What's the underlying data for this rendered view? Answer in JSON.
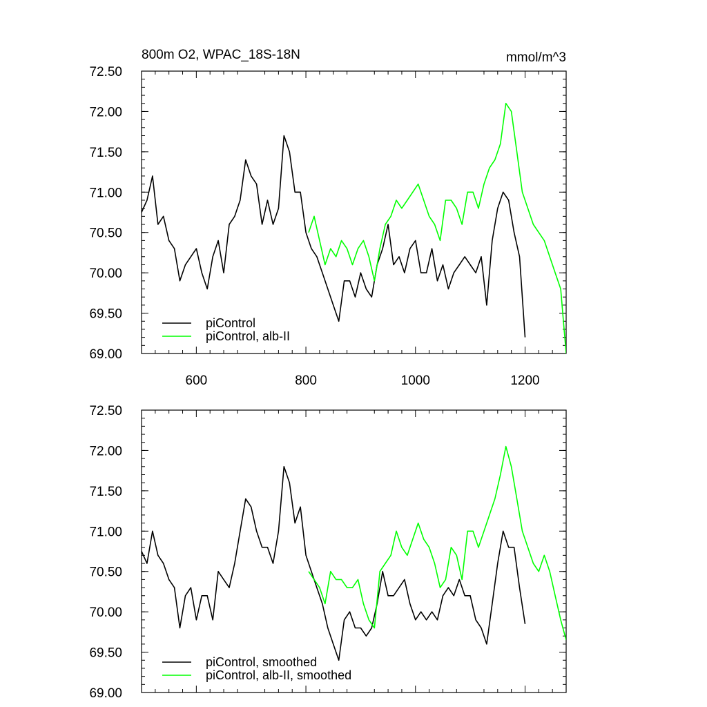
{
  "chart_data": [
    {
      "type": "line",
      "title_left": "800m O2, WPAC_18S-18N",
      "title_right": "mmol/m^3",
      "xlim": [
        500,
        1275
      ],
      "ylim": [
        69.0,
        72.5
      ],
      "xticks": [
        600,
        800,
        1000,
        1200
      ],
      "xtick_labels": [
        "600",
        "800",
        "1000",
        "1200"
      ],
      "yticks": [
        69.0,
        69.5,
        70.0,
        70.5,
        71.0,
        71.5,
        72.0,
        72.5
      ],
      "ytick_labels": [
        "69.00",
        "69.50",
        "70.00",
        "70.50",
        "71.00",
        "71.50",
        "72.00",
        "72.50"
      ],
      "show_xtick_labels": true,
      "legend_placement": "bottom-left",
      "series": [
        {
          "name": "piControl",
          "color": "#000000",
          "x": [
            500,
            510,
            520,
            530,
            540,
            550,
            560,
            570,
            580,
            590,
            600,
            610,
            620,
            630,
            640,
            650,
            660,
            670,
            680,
            690,
            700,
            710,
            720,
            730,
            740,
            750,
            760,
            770,
            780,
            790,
            800,
            810,
            820,
            830,
            840,
            850,
            860,
            870,
            880,
            890,
            900,
            910,
            920,
            930,
            940,
            950,
            960,
            970,
            980,
            990,
            1000,
            1010,
            1020,
            1030,
            1040,
            1050,
            1060,
            1070,
            1080,
            1090,
            1100,
            1110,
            1120,
            1130,
            1140,
            1150,
            1160,
            1170,
            1180,
            1190,
            1200
          ],
          "values": [
            70.75,
            70.9,
            71.2,
            70.6,
            70.7,
            70.4,
            70.3,
            69.9,
            70.1,
            70.2,
            70.3,
            70.0,
            69.8,
            70.2,
            70.4,
            70.0,
            70.6,
            70.7,
            70.9,
            71.4,
            71.2,
            71.1,
            70.6,
            70.9,
            70.6,
            70.8,
            71.7,
            71.5,
            71.0,
            71.0,
            70.5,
            70.3,
            70.2,
            70.0,
            69.8,
            69.6,
            69.4,
            69.9,
            69.9,
            69.7,
            70.0,
            69.8,
            69.7,
            70.1,
            70.3,
            70.6,
            70.1,
            70.2,
            70.0,
            70.3,
            70.4,
            70.0,
            70.0,
            70.3,
            69.9,
            70.1,
            69.8,
            70.0,
            70.1,
            70.2,
            70.1,
            70.0,
            70.2,
            69.6,
            70.4,
            70.8,
            71.0,
            70.9,
            70.5,
            70.2,
            69.2
          ]
        },
        {
          "name": "piControl, alb-II",
          "color": "#00ff00",
          "x": [
            805,
            815,
            825,
            835,
            845,
            855,
            865,
            875,
            885,
            895,
            905,
            915,
            925,
            935,
            945,
            955,
            965,
            975,
            985,
            995,
            1005,
            1015,
            1025,
            1035,
            1045,
            1055,
            1065,
            1075,
            1085,
            1095,
            1105,
            1115,
            1125,
            1135,
            1145,
            1155,
            1165,
            1175,
            1185,
            1195,
            1205,
            1215,
            1225,
            1235,
            1245,
            1255,
            1265,
            1275
          ],
          "values": [
            70.5,
            70.7,
            70.4,
            70.1,
            70.3,
            70.2,
            70.4,
            70.3,
            70.1,
            70.3,
            70.4,
            70.2,
            69.9,
            70.3,
            70.6,
            70.7,
            70.9,
            70.8,
            70.9,
            71.0,
            71.1,
            70.9,
            70.7,
            70.6,
            70.4,
            70.9,
            70.9,
            70.8,
            70.6,
            71.0,
            71.0,
            70.8,
            71.1,
            71.3,
            71.4,
            71.6,
            72.1,
            72.0,
            71.5,
            71.0,
            70.8,
            70.6,
            70.5,
            70.4,
            70.2,
            70.0,
            69.8,
            69.0
          ]
        }
      ]
    },
    {
      "type": "line",
      "xlim": [
        500,
        1275
      ],
      "ylim": [
        69.0,
        72.5
      ],
      "xticks": [
        600,
        800,
        1000,
        1200
      ],
      "yticks": [
        69.0,
        69.5,
        70.0,
        70.5,
        71.0,
        71.5,
        72.0,
        72.5
      ],
      "ytick_labels": [
        "69.00",
        "69.50",
        "70.00",
        "70.50",
        "71.00",
        "71.50",
        "72.00",
        "72.50"
      ],
      "show_xtick_labels": false,
      "legend_placement": "bottom-left",
      "series": [
        {
          "name": "piControl, smoothed",
          "color": "#000000",
          "x": [
            500,
            510,
            520,
            530,
            540,
            550,
            560,
            570,
            580,
            590,
            600,
            610,
            620,
            630,
            640,
            650,
            660,
            670,
            680,
            690,
            700,
            710,
            720,
            730,
            740,
            750,
            760,
            770,
            780,
            790,
            800,
            810,
            820,
            830,
            840,
            850,
            860,
            870,
            880,
            890,
            900,
            910,
            920,
            930,
            940,
            950,
            960,
            970,
            980,
            990,
            1000,
            1010,
            1020,
            1030,
            1040,
            1050,
            1060,
            1070,
            1080,
            1090,
            1100,
            1110,
            1120,
            1130,
            1140,
            1150,
            1160,
            1170,
            1180,
            1190,
            1200
          ],
          "values": [
            70.75,
            70.6,
            71.0,
            70.7,
            70.6,
            70.4,
            70.3,
            69.8,
            70.2,
            70.3,
            69.9,
            70.2,
            70.2,
            69.9,
            70.5,
            70.4,
            70.3,
            70.6,
            71.0,
            71.4,
            71.3,
            71.0,
            70.8,
            70.8,
            70.6,
            71.0,
            71.8,
            71.6,
            71.1,
            71.3,
            70.7,
            70.5,
            70.3,
            70.1,
            69.8,
            69.6,
            69.4,
            69.9,
            70.0,
            69.8,
            69.8,
            69.7,
            69.8,
            70.1,
            70.5,
            70.2,
            70.2,
            70.3,
            70.4,
            70.1,
            69.9,
            70.0,
            69.9,
            70.0,
            69.9,
            70.2,
            70.3,
            70.2,
            70.4,
            70.2,
            70.2,
            69.9,
            69.8,
            69.6,
            70.1,
            70.6,
            71.0,
            70.8,
            70.8,
            70.3,
            69.85
          ]
        },
        {
          "name": "piControl, alb-II, smoothed",
          "color": "#00ff00",
          "x": [
            805,
            815,
            825,
            835,
            845,
            855,
            865,
            875,
            885,
            895,
            905,
            915,
            925,
            935,
            945,
            955,
            965,
            975,
            985,
            995,
            1005,
            1015,
            1025,
            1035,
            1045,
            1055,
            1065,
            1075,
            1085,
            1095,
            1105,
            1115,
            1125,
            1135,
            1145,
            1155,
            1165,
            1175,
            1185,
            1195,
            1205,
            1215,
            1225,
            1235,
            1245,
            1255,
            1265,
            1275
          ],
          "values": [
            70.5,
            70.4,
            70.3,
            70.1,
            70.5,
            70.4,
            70.4,
            70.3,
            70.3,
            70.4,
            70.1,
            69.9,
            69.8,
            70.5,
            70.6,
            70.7,
            71.0,
            70.8,
            70.7,
            70.9,
            71.1,
            70.9,
            70.8,
            70.6,
            70.3,
            70.4,
            70.8,
            70.7,
            70.4,
            71.0,
            71.0,
            70.8,
            71.0,
            71.2,
            71.4,
            71.7,
            72.05,
            71.8,
            71.4,
            71.0,
            70.8,
            70.6,
            70.5,
            70.7,
            70.5,
            70.2,
            69.9,
            69.65
          ]
        }
      ]
    }
  ]
}
